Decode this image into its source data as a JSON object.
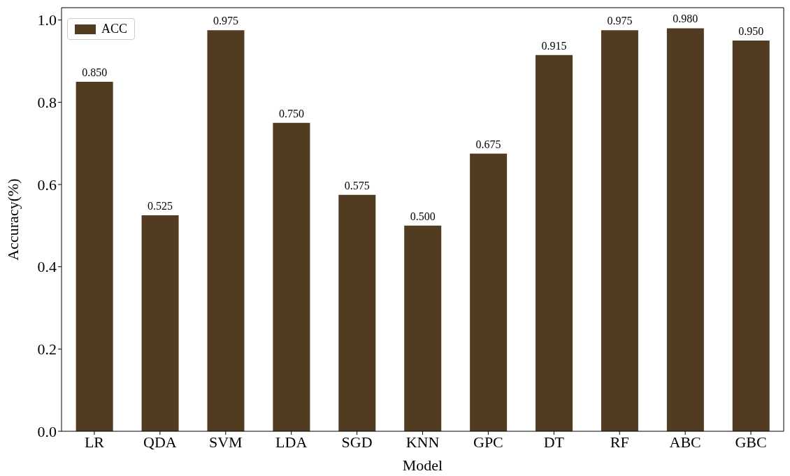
{
  "chart_data": {
    "type": "bar",
    "xlabel": "Model",
    "ylabel": "Accuracy(%)",
    "categories": [
      "LR",
      "QDA",
      "SVM",
      "LDA",
      "SGD",
      "KNN",
      "GPC",
      "DT",
      "RF",
      "ABC",
      "GBC"
    ],
    "series": [
      {
        "name": "ACC",
        "color": "#523c21",
        "values": [
          0.85,
          0.525,
          0.975,
          0.75,
          0.575,
          0.5,
          0.675,
          0.915,
          0.975,
          0.98,
          0.95
        ],
        "value_labels": [
          "0.850",
          "0.525",
          "0.975",
          "0.750",
          "0.575",
          "0.500",
          "0.675",
          "0.915",
          "0.975",
          "0.980",
          "0.950"
        ]
      }
    ],
    "ylim": [
      0,
      1.03
    ],
    "yticks": [
      {
        "value": 0,
        "label": "0.0"
      },
      {
        "value": 0.2,
        "label": "0.2"
      },
      {
        "value": 0.4,
        "label": "0.4"
      },
      {
        "value": 0.6,
        "label": "0.6"
      },
      {
        "value": 0.8,
        "label": "0.8"
      },
      {
        "value": 1,
        "label": "1.0"
      }
    ],
    "legend": "top left",
    "grid": false
  }
}
